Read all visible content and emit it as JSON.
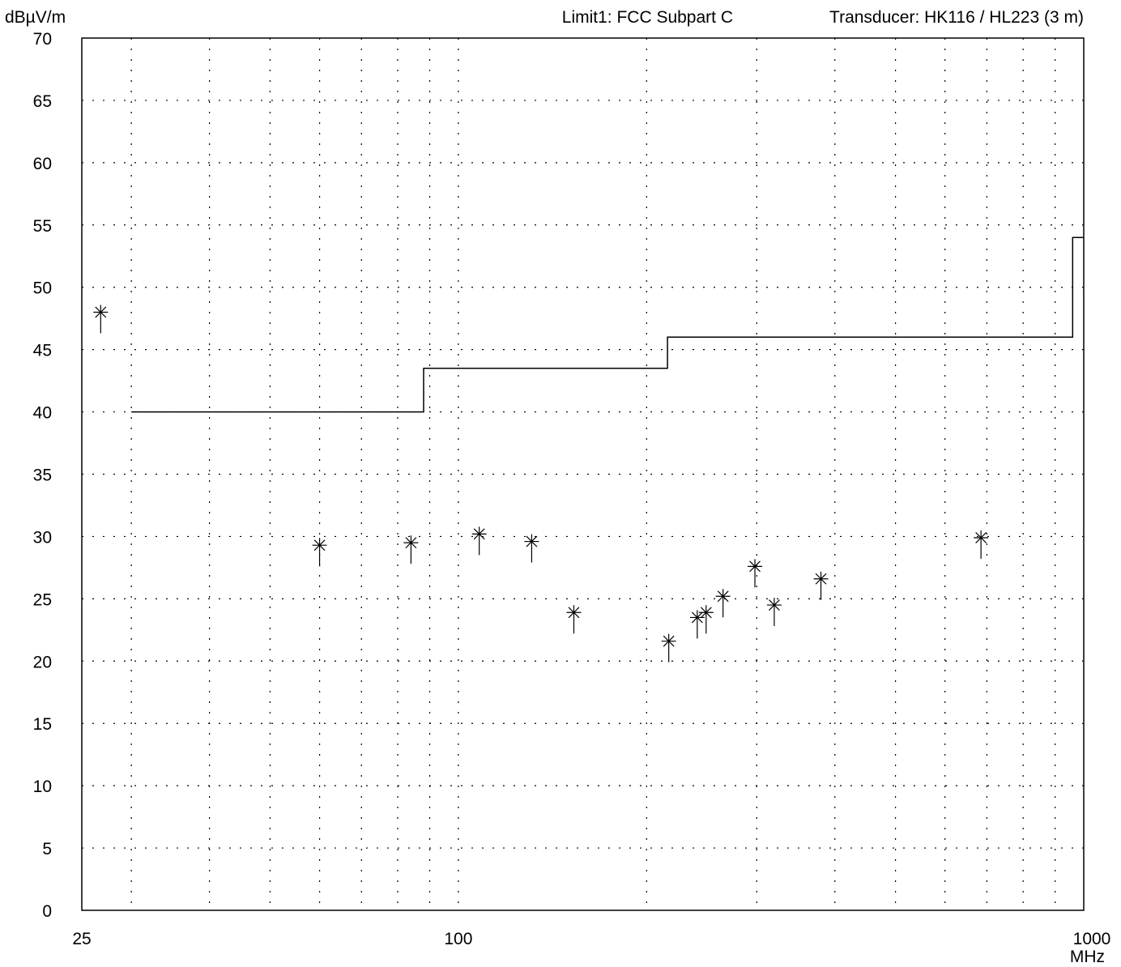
{
  "chart_data": {
    "type": "scatter",
    "ylabel": "dBµV/m",
    "xlabel": "MHz",
    "header_right": [
      "Limit1: FCC Subpart C",
      "Transducer: HK116 / HL223 (3 m)"
    ],
    "x_scale": "log",
    "xlim": [
      25,
      1000
    ],
    "ylim": [
      0,
      70
    ],
    "grid": true,
    "y_ticks": [
      0,
      5,
      10,
      15,
      20,
      25,
      30,
      35,
      40,
      45,
      50,
      55,
      60,
      65,
      70
    ],
    "x_tick_labels": [
      {
        "value": 25,
        "label": "25"
      },
      {
        "value": 100,
        "label": "100"
      },
      {
        "value": 1000,
        "label": "1000"
      }
    ],
    "x_gridlines": [
      30,
      40,
      50,
      60,
      70,
      80,
      90,
      200,
      300,
      400,
      500,
      600,
      700,
      800,
      900
    ],
    "limit_line": {
      "name": "Limit1: FCC Subpart C",
      "points": [
        [
          30,
          40
        ],
        [
          88,
          40
        ],
        [
          88,
          43.5
        ],
        [
          216,
          43.5
        ],
        [
          216,
          46
        ],
        [
          960,
          46
        ],
        [
          960,
          54
        ],
        [
          1000,
          54
        ]
      ]
    },
    "measurements": [
      {
        "x": 26.8,
        "y": 48.0
      },
      {
        "x": 60.0,
        "y": 29.3
      },
      {
        "x": 84.0,
        "y": 29.5
      },
      {
        "x": 108.0,
        "y": 30.2
      },
      {
        "x": 131.0,
        "y": 29.6
      },
      {
        "x": 153.0,
        "y": 23.9
      },
      {
        "x": 217.0,
        "y": 21.6
      },
      {
        "x": 241.0,
        "y": 23.5
      },
      {
        "x": 249.0,
        "y": 23.9
      },
      {
        "x": 265.0,
        "y": 25.2
      },
      {
        "x": 298.0,
        "y": 27.6
      },
      {
        "x": 320.0,
        "y": 24.5
      },
      {
        "x": 380.0,
        "y": 26.6
      },
      {
        "x": 685.0,
        "y": 29.9
      }
    ]
  }
}
